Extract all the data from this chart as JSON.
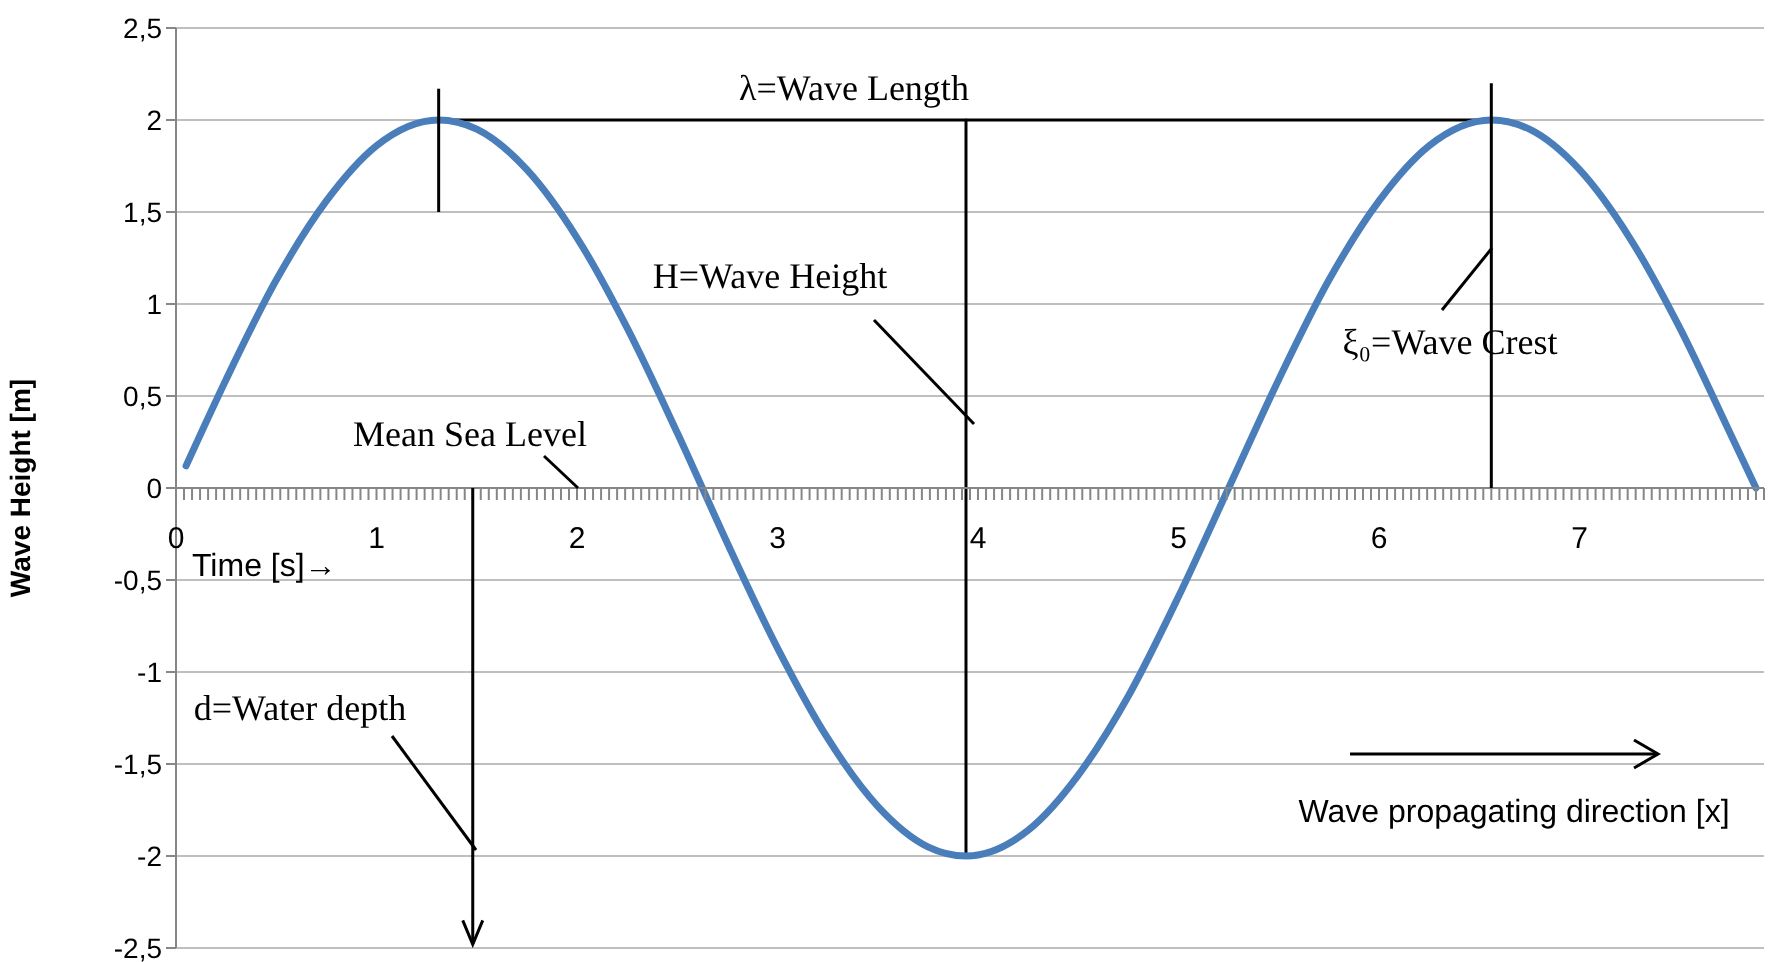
{
  "chart_data": {
    "type": "line",
    "xlabel": "Time [s]→",
    "ylabel": "Wave Height [m]",
    "x": [
      0.05,
      0.25,
      0.5,
      0.75,
      1.0,
      1.31,
      1.5,
      1.75,
      2.0,
      2.25,
      2.5,
      2.75,
      3.0,
      3.25,
      3.5,
      3.75,
      3.94,
      4.25,
      4.5,
      4.75,
      5.0,
      5.25,
      5.5,
      5.75,
      6.0,
      6.25,
      6.56,
      6.75,
      7.0,
      7.25,
      7.5,
      7.75,
      7.88
    ],
    "series": [
      {
        "type": "line",
        "color": "#000000",
        "x": [
          1.31,
          6.56
        ],
        "values": [
          2,
          2
        ]
      },
      {
        "type": "line",
        "color": "#000000",
        "x": [
          3.94,
          3.94
        ],
        "values": [
          2,
          -2
        ]
      },
      {
        "color": "#4a7ebb",
        "values": [
          0.12,
          0.59,
          1.13,
          1.56,
          1.86,
          2.0,
          1.95,
          1.73,
          1.36,
          0.87,
          0.3,
          -0.3,
          -0.87,
          -1.36,
          -1.73,
          -1.95,
          -2.0,
          -1.86,
          -1.56,
          -1.13,
          -0.59,
          0,
          0.59,
          1.13,
          1.56,
          1.86,
          2.0,
          1.95,
          1.73,
          1.36,
          0.87,
          0.3,
          0
        ]
      }
    ],
    "xlim": [
      0,
      7.92
    ],
    "xticks": [
      0,
      1,
      2,
      3,
      4,
      5,
      6,
      7
    ],
    "ylim": [
      -2.5,
      2.5
    ],
    "yticks": [
      {
        "value": -2.5,
        "label": "-2,5"
      },
      {
        "value": -2,
        "label": "-2"
      },
      {
        "value": -1.5,
        "label": "-1,5"
      },
      {
        "value": -1,
        "label": "-1"
      },
      {
        "value": -0.5,
        "label": "-0,5"
      },
      {
        "value": 0,
        "label": "0"
      },
      {
        "value": 0.5,
        "label": "0,5"
      },
      {
        "value": 1,
        "label": "1"
      },
      {
        "value": 1.5,
        "label": "1,5"
      },
      {
        "value": 2,
        "label": "2"
      },
      {
        "value": 2.5,
        "label": "2,5"
      }
    ],
    "grid": "y",
    "legend": false,
    "marker": "none",
    "line_style": "solid",
    "annotations": [
      "λ=Wave Length",
      "H=Wave Height",
      "ξ₀=Wave Crest",
      "Mean Sea Level",
      "d=Water depth",
      "Wave propagating direction [x]"
    ]
  }
}
